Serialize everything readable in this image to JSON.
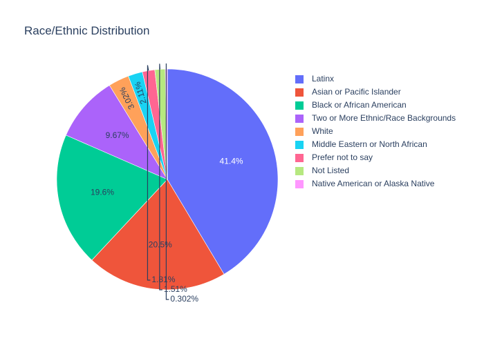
{
  "chart_data": {
    "type": "pie",
    "title": "Race/Ethnic Distribution",
    "legend_position": "right",
    "slices": [
      {
        "label": "Latinx",
        "value": 41.4,
        "text": "41.4%",
        "color": "#636efa"
      },
      {
        "label": "Asian or Pacific Islander",
        "value": 20.5,
        "text": "20.5%",
        "color": "#EF553B"
      },
      {
        "label": "Black or African American",
        "value": 19.6,
        "text": "19.6%",
        "color": "#00cc96"
      },
      {
        "label": "Two or More Ethnic/Race Backgrounds",
        "value": 9.67,
        "text": "9.67%",
        "color": "#ab63fa"
      },
      {
        "label": "White",
        "value": 3.02,
        "text": "3.02%",
        "color": "#FFA15A"
      },
      {
        "label": "Middle Eastern or North African",
        "value": 2.11,
        "text": "2.11%",
        "color": "#19d3f3"
      },
      {
        "label": "Prefer not to say",
        "value": 1.81,
        "text": "1.81%",
        "color": "#FF6692"
      },
      {
        "label": "Not Listed",
        "value": 1.51,
        "text": "1.51%",
        "color": "#B6E880"
      },
      {
        "label": "Native American or Alaska Native",
        "value": 0.302,
        "text": "0.302%",
        "color": "#FF97FF"
      }
    ]
  }
}
